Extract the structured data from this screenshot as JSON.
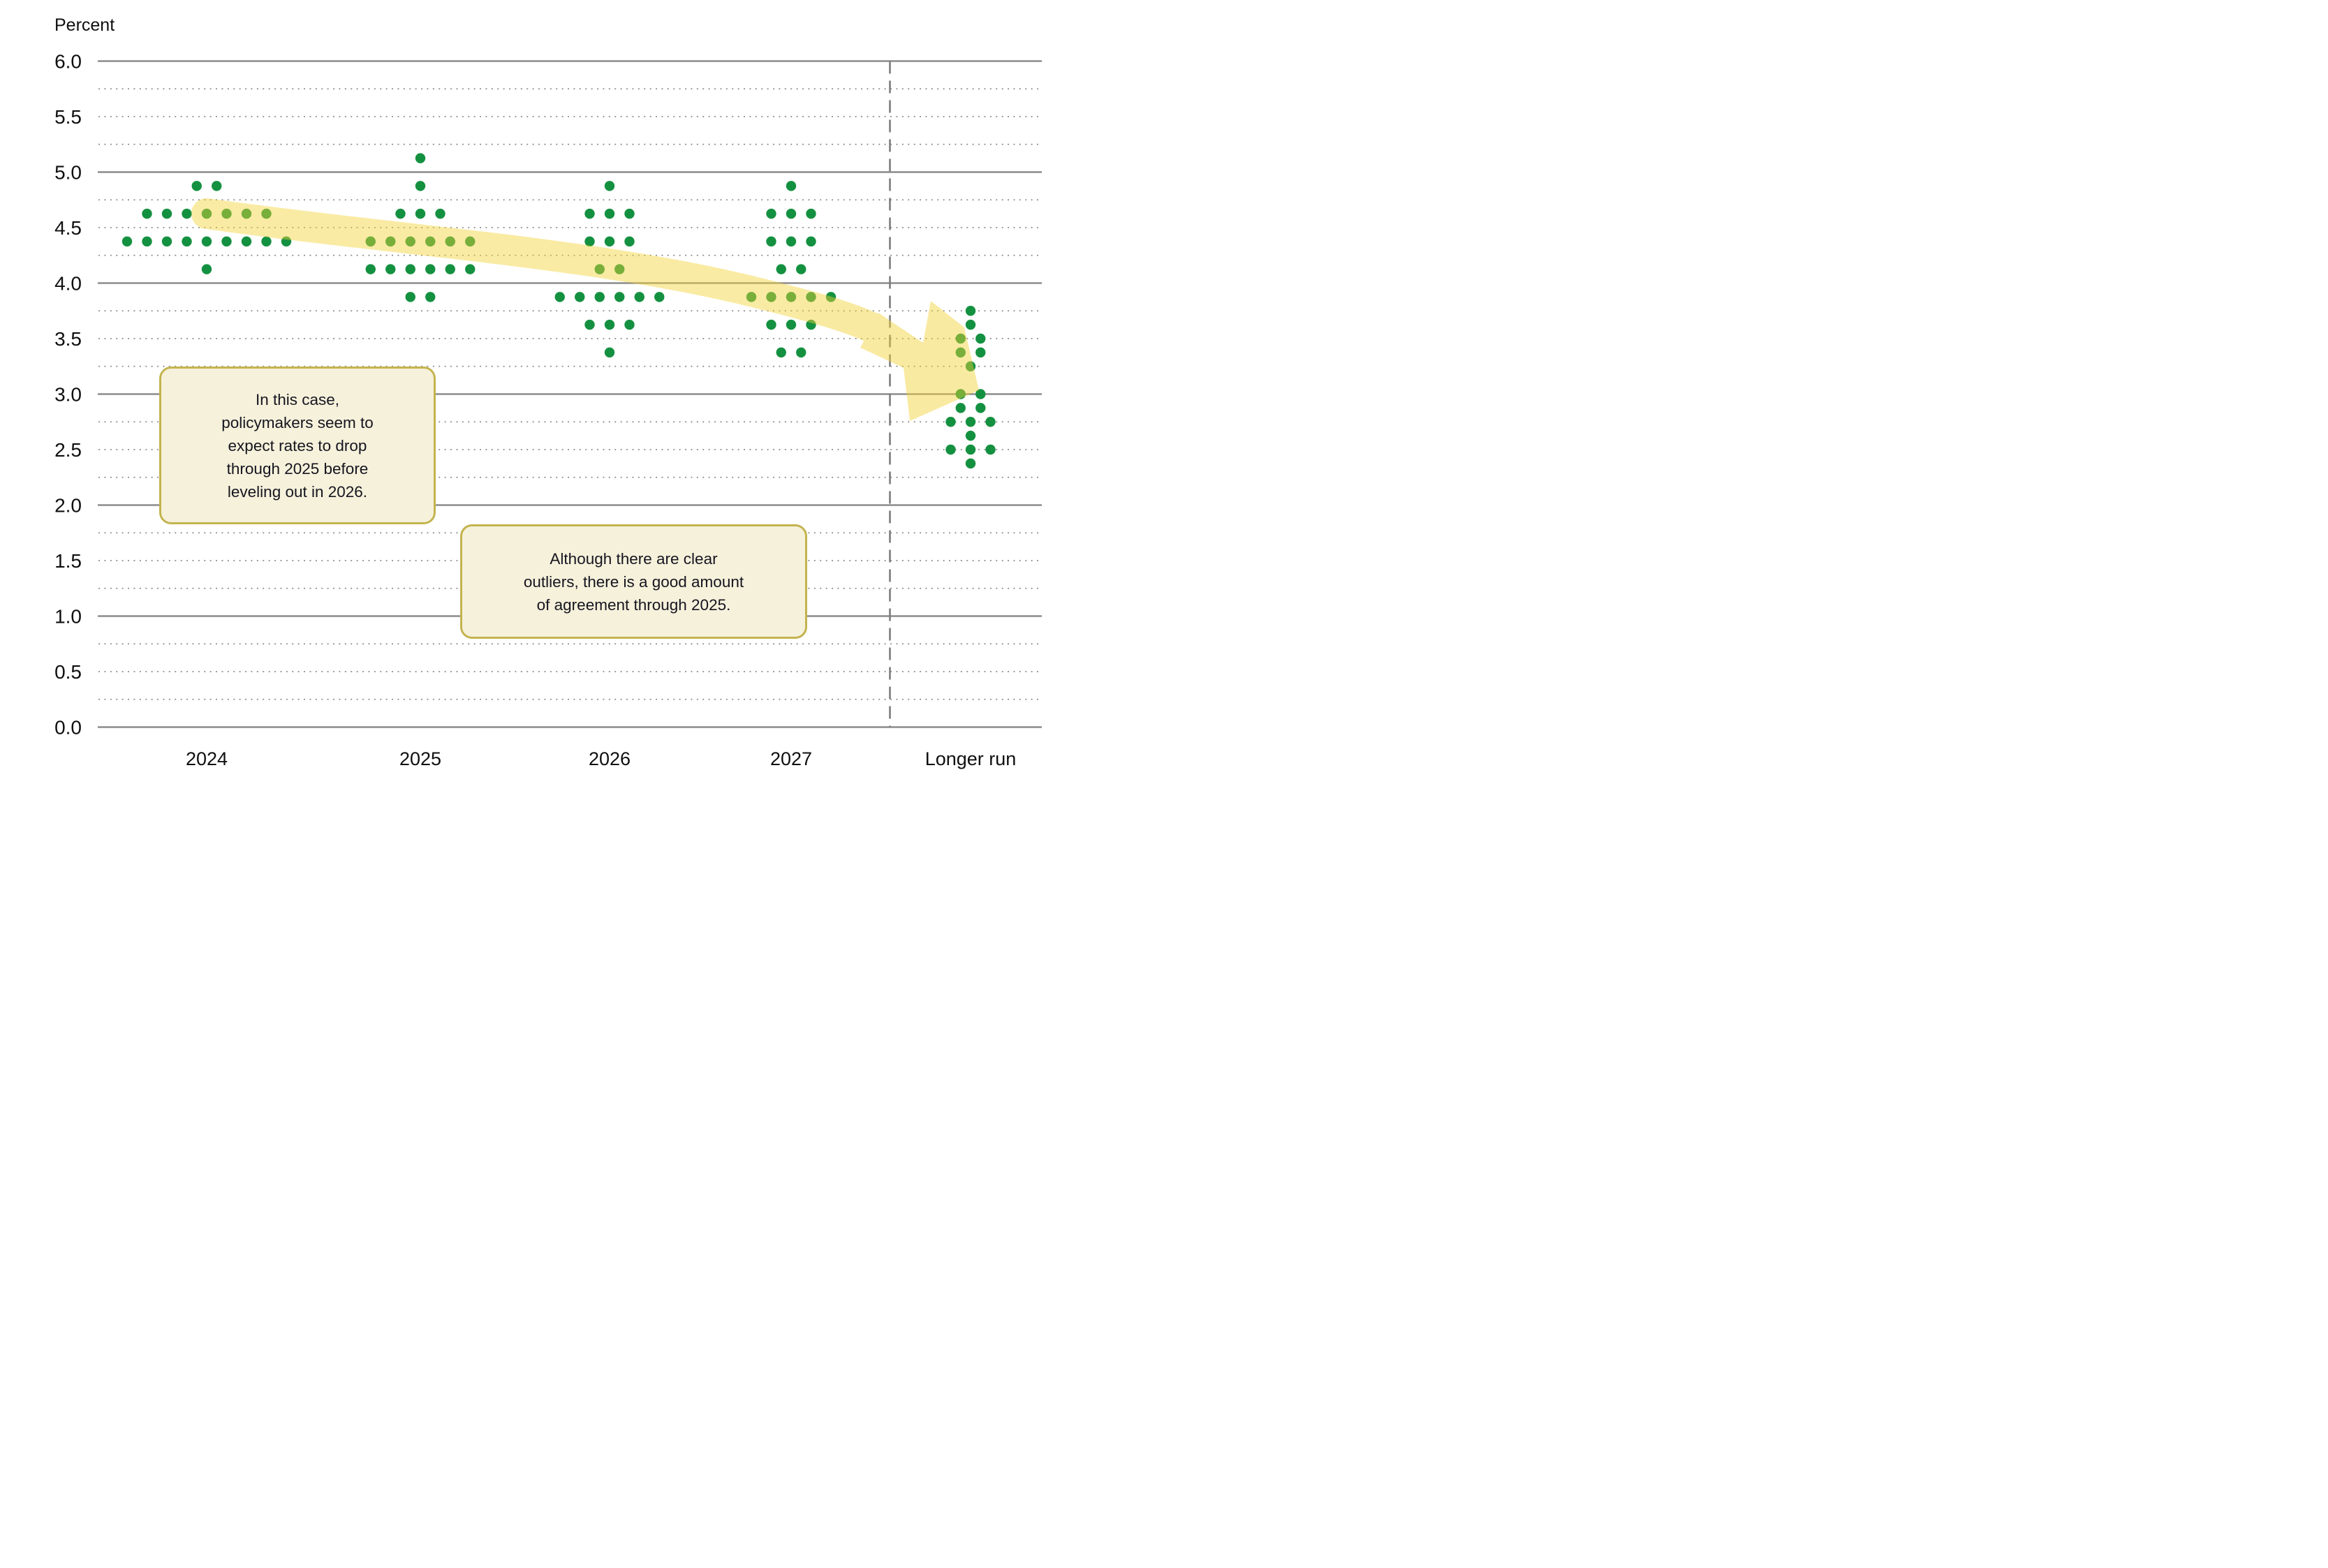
{
  "chart_data": {
    "type": "scatter",
    "subtype": "fomc-dot-plot",
    "title": "",
    "ylabel": "Percent",
    "xlabel": "",
    "ylim": [
      0.0,
      6.0
    ],
    "ytick_step": 0.5,
    "ytick_labels": [
      "6.0",
      "5.5",
      "5.0",
      "4.5",
      "4.0",
      "3.5",
      "3.0",
      "2.5",
      "2.0",
      "1.5",
      "1.0",
      "0.5",
      "0.0"
    ],
    "grid": "solid horizontal lines at whole percents, dotted lines at quarter-percent steps, dashed vertical divider before Longer run",
    "legend": "none",
    "categories": [
      "2024",
      "2025",
      "2026",
      "2027",
      "Longer run"
    ],
    "series": [
      {
        "category": "2024",
        "dots": [
          {
            "rate": 4.875,
            "count": 2
          },
          {
            "rate": 4.625,
            "count": 7
          },
          {
            "rate": 4.375,
            "count": 9
          },
          {
            "rate": 4.125,
            "count": 1
          }
        ]
      },
      {
        "category": "2025",
        "dots": [
          {
            "rate": 5.125,
            "count": 1
          },
          {
            "rate": 4.875,
            "count": 1
          },
          {
            "rate": 4.625,
            "count": 3
          },
          {
            "rate": 4.375,
            "count": 6
          },
          {
            "rate": 4.125,
            "count": 6
          },
          {
            "rate": 3.875,
            "count": 2
          }
        ]
      },
      {
        "category": "2026",
        "dots": [
          {
            "rate": 4.875,
            "count": 1
          },
          {
            "rate": 4.625,
            "count": 3
          },
          {
            "rate": 4.375,
            "count": 3
          },
          {
            "rate": 4.125,
            "count": 2
          },
          {
            "rate": 3.875,
            "count": 6
          },
          {
            "rate": 3.625,
            "count": 3
          },
          {
            "rate": 3.375,
            "count": 1
          }
        ]
      },
      {
        "category": "2027",
        "dots": [
          {
            "rate": 4.875,
            "count": 1
          },
          {
            "rate": 4.625,
            "count": 3
          },
          {
            "rate": 4.375,
            "count": 3
          },
          {
            "rate": 4.125,
            "count": 2
          },
          {
            "rate": 3.875,
            "count": 5
          },
          {
            "rate": 3.625,
            "count": 3
          },
          {
            "rate": 3.375,
            "count": 2
          }
        ]
      },
      {
        "category": "Longer run",
        "dots": [
          {
            "rate": 3.75,
            "count": 1
          },
          {
            "rate": 3.625,
            "count": 1
          },
          {
            "rate": 3.5,
            "count": 2
          },
          {
            "rate": 3.375,
            "count": 2
          },
          {
            "rate": 3.25,
            "count": 1
          },
          {
            "rate": 3.0,
            "count": 2
          },
          {
            "rate": 2.875,
            "count": 2
          },
          {
            "rate": 2.75,
            "count": 3
          },
          {
            "rate": 2.625,
            "count": 1
          },
          {
            "rate": 2.5,
            "count": 3
          },
          {
            "rate": 2.375,
            "count": 1
          }
        ]
      }
    ],
    "annotations": [
      {
        "id": "callout1",
        "text": "In this case,\npolicymakers seem to\nexpect rates to drop\nthrough 2025 before\nleveling out in 2026."
      },
      {
        "id": "callout2",
        "text": "Although there are clear\noutliers, there is a good amount\nof agreement through 2025."
      },
      {
        "id": "trend-arrow",
        "description": "translucent yellow arrow sweeping from the 2024 dots down-right to the Longer run dots near 3.0"
      }
    ],
    "colors": {
      "dot_green": "#149140",
      "arrow_yellow": "#f2d233",
      "arrow_opacity": 0.45,
      "grid_solid": "#8c8c8c",
      "grid_dotted": "#8a8a8a",
      "divider_dashed": "#7d7d7d",
      "callout_fill": "#f6f1db",
      "callout_border": "#c3b44f",
      "text": "#0f0f0f"
    }
  }
}
